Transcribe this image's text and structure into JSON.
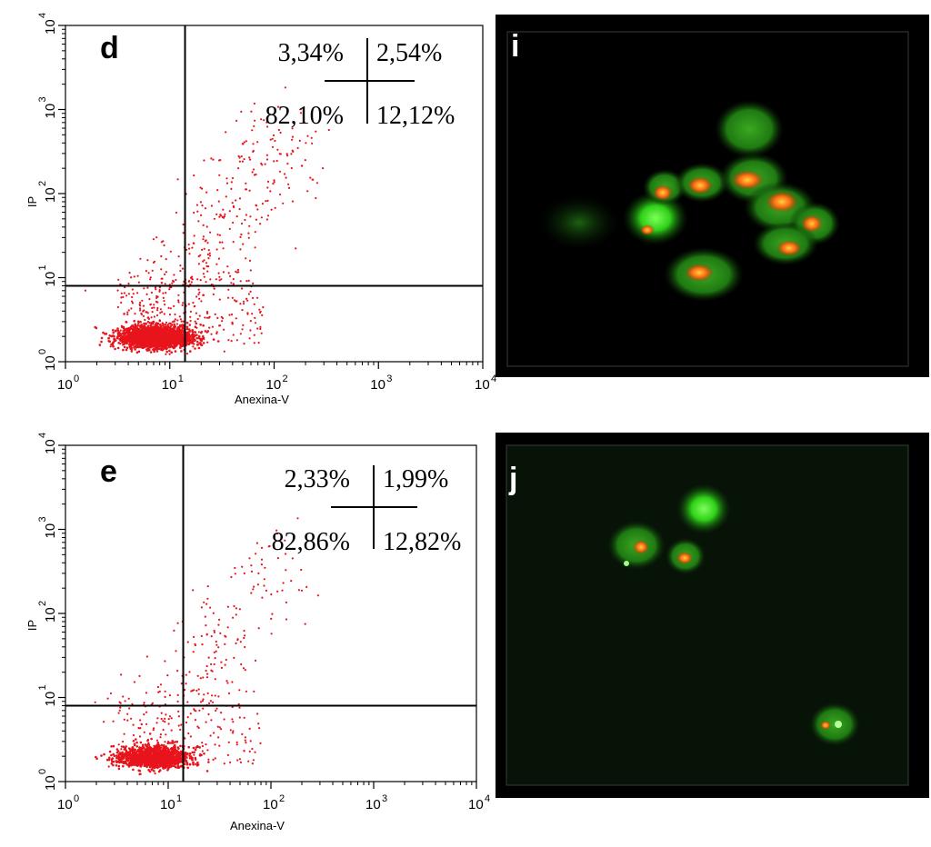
{
  "chart_data": [
    {
      "type": "scatter",
      "panel_label": "d",
      "xlabel": "Anexina-V",
      "ylabel": "IP",
      "xscale": "log",
      "yscale": "log",
      "xlim": [
        1,
        10000
      ],
      "ylim": [
        1,
        10000
      ],
      "x_ticks": [
        {
          "base": "10",
          "exp": "0"
        },
        {
          "base": "10",
          "exp": "1"
        },
        {
          "base": "10",
          "exp": "2"
        },
        {
          "base": "10",
          "exp": "3"
        },
        {
          "base": "10",
          "exp": "4"
        }
      ],
      "y_ticks": [
        {
          "base": "10",
          "exp": "0"
        },
        {
          "base": "10",
          "exp": "1"
        },
        {
          "base": "10",
          "exp": "2"
        },
        {
          "base": "10",
          "exp": "3"
        },
        {
          "base": "10",
          "exp": "4"
        }
      ],
      "gate": {
        "x": 14,
        "y": 8
      },
      "quadrants": {
        "upper_left": "3,34%",
        "upper_right": "2,54%",
        "lower_left": "82,10%",
        "lower_right": "12,12%"
      },
      "point_color": "#e8141c",
      "approx_event_count": 3000
    },
    {
      "type": "scatter",
      "panel_label": "e",
      "xlabel": "Anexina-V",
      "ylabel": "IP",
      "xscale": "log",
      "yscale": "log",
      "xlim": [
        1,
        10000
      ],
      "ylim": [
        1,
        10000
      ],
      "x_ticks": [
        {
          "base": "10",
          "exp": "0"
        },
        {
          "base": "10",
          "exp": "1"
        },
        {
          "base": "10",
          "exp": "2"
        },
        {
          "base": "10",
          "exp": "3"
        },
        {
          "base": "10",
          "exp": "4"
        }
      ],
      "y_ticks": [
        {
          "base": "10",
          "exp": "0"
        },
        {
          "base": "10",
          "exp": "1"
        },
        {
          "base": "10",
          "exp": "2"
        },
        {
          "base": "10",
          "exp": "3"
        },
        {
          "base": "10",
          "exp": "4"
        }
      ],
      "gate": {
        "x": 14,
        "y": 8
      },
      "quadrants": {
        "upper_left": "2,33%",
        "upper_right": "1,99%",
        "lower_left": "82,86%",
        "lower_right": "12,82%"
      },
      "point_color": "#e8141c",
      "approx_event_count": 1800
    }
  ],
  "micrographs": [
    {
      "panel_label": "i",
      "background": "#000000",
      "stains": [
        "green",
        "orange-red"
      ]
    },
    {
      "panel_label": "j",
      "background": "#071307",
      "stains": [
        "green",
        "orange-red"
      ]
    }
  ]
}
